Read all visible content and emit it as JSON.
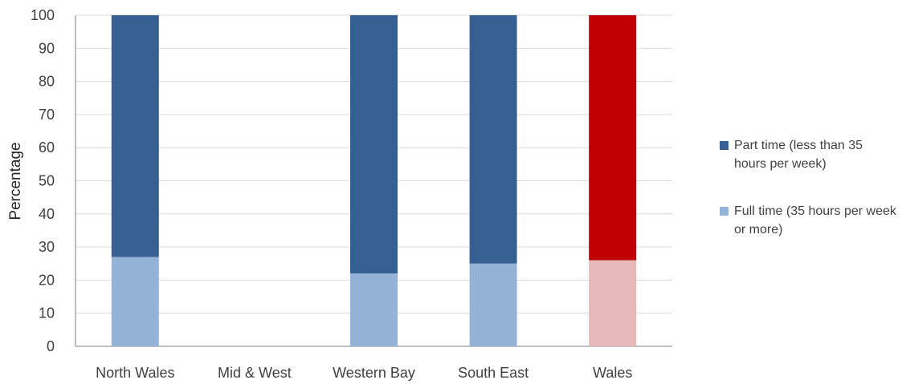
{
  "chart_data": {
    "type": "bar",
    "stacked": true,
    "categories": [
      "North Wales",
      "Mid & West",
      "Western Bay",
      "South East",
      "Wales"
    ],
    "series": [
      {
        "name": "Full time (35 hours per week or more)",
        "values": [
          27,
          null,
          22,
          25,
          26
        ]
      },
      {
        "name": "Part time (less than 35 hours per week)",
        "values": [
          73,
          null,
          78,
          75,
          74
        ]
      }
    ],
    "colors": {
      "full_time": "#95B3D7",
      "part_time": "#366092",
      "wales_full_time": "#E6B9B8",
      "wales_part_time": "#C00000",
      "grid": "#D9D9D9",
      "axis": "#7F7F7F"
    },
    "ylabel": "Percentage",
    "xlabel": "",
    "ylim": [
      0,
      100
    ],
    "yticks": [
      0,
      10,
      20,
      30,
      40,
      50,
      60,
      70,
      80,
      90,
      100
    ],
    "grid": true,
    "legend_position": "right"
  },
  "legend": {
    "part_time": "Part time (less than 35 hours per week)",
    "full_time": "Full time (35 hours per week or more)"
  }
}
